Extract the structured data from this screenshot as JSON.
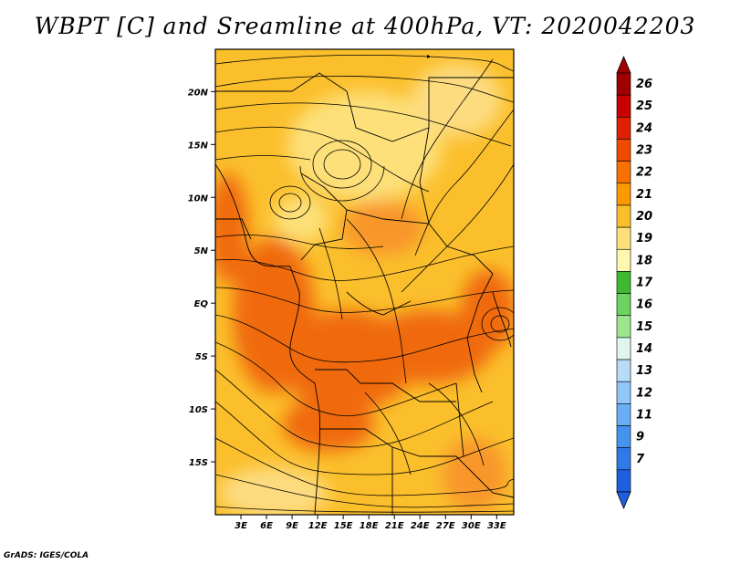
{
  "title": "WBPT [C] and Sreamline at 400hPa, VT: 2020042203",
  "credit": "GrADS: IGES/COLA",
  "map": {
    "lat_labels": [
      "20N",
      "15N",
      "10N",
      "5N",
      "EQ",
      "5S",
      "10S",
      "15S"
    ],
    "lon_labels": [
      "3E",
      "6E",
      "9E",
      "12E",
      "15E",
      "18E",
      "21E",
      "24E",
      "27E",
      "30E",
      "33E"
    ],
    "lat_range": [
      -20,
      24
    ],
    "lon_range": [
      0,
      35
    ],
    "field_name": "WBPT [C]",
    "level": "400hPa",
    "valid_time": "2020042203"
  },
  "colorbar": {
    "labels": [
      "26",
      "25",
      "24",
      "23",
      "22",
      "21",
      "20",
      "19",
      "18",
      "17",
      "16",
      "15",
      "14",
      "13",
      "12",
      "11",
      "9",
      "7"
    ],
    "colors": [
      "#a00000",
      "#c80000",
      "#e01e00",
      "#f04a00",
      "#f87000",
      "#fa9a00",
      "#fbbf2c",
      "#fde07a",
      "#fff7b0",
      "#3fb832",
      "#6cd260",
      "#9ee68e",
      "#dff6ee",
      "#b8dcf8",
      "#90c6f8",
      "#6aaef6",
      "#4493ef",
      "#2f79e8",
      "#1e5fe0"
    ],
    "top_arrow_color": "#a00000",
    "bottom_arrow_color": "#1e5fe0"
  },
  "colors": {
    "ocean_bg": "#fbbf2c",
    "warm_core": "#f06a10",
    "mid": "#f8962a",
    "cool": "#fddc80",
    "coast": "#000000",
    "streamline": "#000000"
  }
}
